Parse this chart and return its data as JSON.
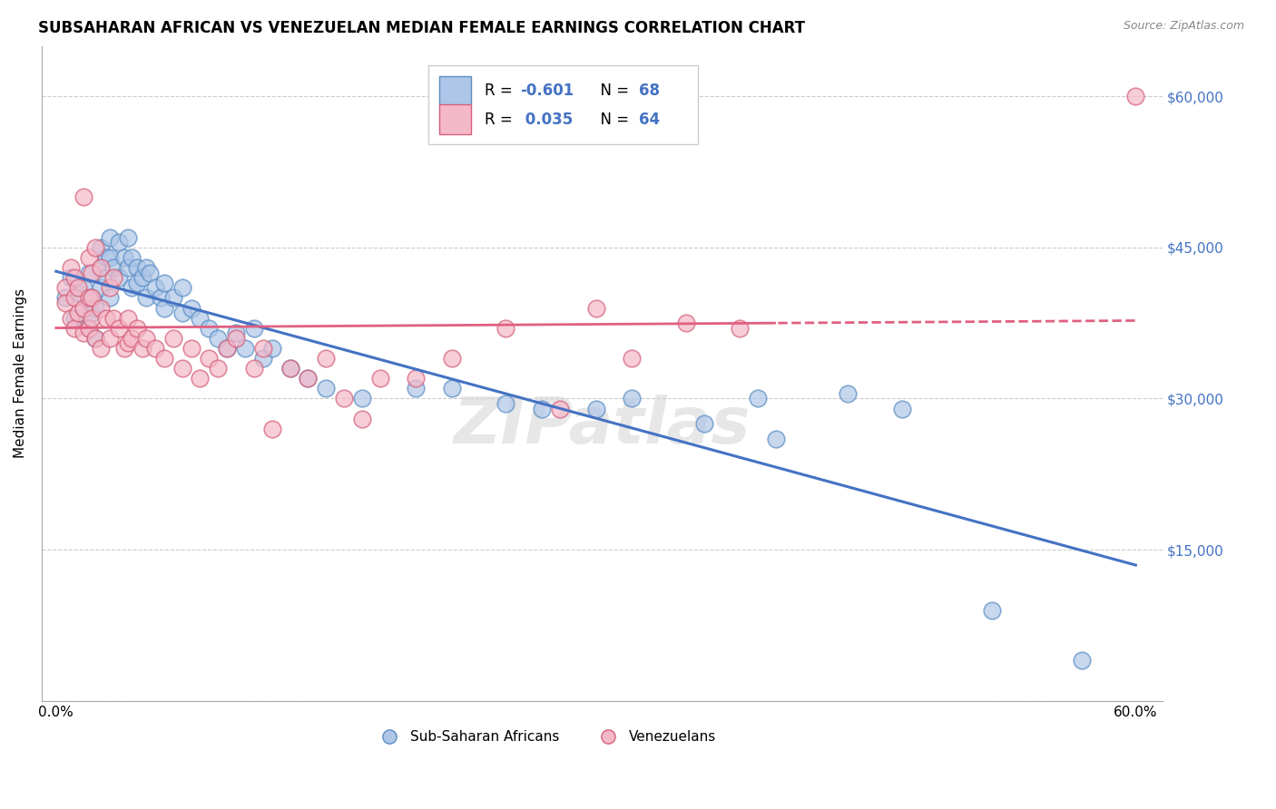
{
  "title": "SUBSAHARAN AFRICAN VS VENEZUELAN MEDIAN FEMALE EARNINGS CORRELATION CHART",
  "source": "Source: ZipAtlas.com",
  "ylabel": "Median Female Earnings",
  "y_ticks": [
    0,
    15000,
    30000,
    45000,
    60000
  ],
  "y_tick_labels": [
    "",
    "$15,000",
    "$30,000",
    "$45,000",
    "$60,000"
  ],
  "x_range": [
    0.0,
    0.6
  ],
  "y_range": [
    0,
    65000
  ],
  "legend_labels_bottom": [
    "Sub-Saharan Africans",
    "Venezuelans"
  ],
  "blue_fill": "#aec6e8",
  "blue_edge": "#5b8ec4",
  "pink_fill": "#f5b8c8",
  "pink_edge": "#d4607a",
  "blue_line": "#4472c4",
  "pink_line": "#e06080",
  "watermark": "ZIPatlas",
  "blue_points": [
    [
      0.005,
      40000
    ],
    [
      0.008,
      42000
    ],
    [
      0.01,
      38000
    ],
    [
      0.012,
      40500
    ],
    [
      0.015,
      39000
    ],
    [
      0.015,
      41000
    ],
    [
      0.018,
      37000
    ],
    [
      0.018,
      42500
    ],
    [
      0.02,
      38500
    ],
    [
      0.02,
      40000
    ],
    [
      0.022,
      36000
    ],
    [
      0.022,
      39000
    ],
    [
      0.025,
      41000
    ],
    [
      0.025,
      43000
    ],
    [
      0.025,
      45000
    ],
    [
      0.028,
      44000
    ],
    [
      0.028,
      42000
    ],
    [
      0.03,
      46000
    ],
    [
      0.03,
      44000
    ],
    [
      0.03,
      40000
    ],
    [
      0.032,
      43000
    ],
    [
      0.035,
      45500
    ],
    [
      0.035,
      42000
    ],
    [
      0.038,
      44000
    ],
    [
      0.04,
      46000
    ],
    [
      0.04,
      43000
    ],
    [
      0.042,
      41000
    ],
    [
      0.042,
      44000
    ],
    [
      0.045,
      43000
    ],
    [
      0.045,
      41500
    ],
    [
      0.048,
      42000
    ],
    [
      0.05,
      43000
    ],
    [
      0.05,
      40000
    ],
    [
      0.052,
      42500
    ],
    [
      0.055,
      41000
    ],
    [
      0.058,
      40000
    ],
    [
      0.06,
      39000
    ],
    [
      0.06,
      41500
    ],
    [
      0.065,
      40000
    ],
    [
      0.07,
      38500
    ],
    [
      0.07,
      41000
    ],
    [
      0.075,
      39000
    ],
    [
      0.08,
      38000
    ],
    [
      0.085,
      37000
    ],
    [
      0.09,
      36000
    ],
    [
      0.095,
      35000
    ],
    [
      0.1,
      36500
    ],
    [
      0.105,
      35000
    ],
    [
      0.11,
      37000
    ],
    [
      0.115,
      34000
    ],
    [
      0.12,
      35000
    ],
    [
      0.13,
      33000
    ],
    [
      0.14,
      32000
    ],
    [
      0.15,
      31000
    ],
    [
      0.17,
      30000
    ],
    [
      0.2,
      31000
    ],
    [
      0.22,
      31000
    ],
    [
      0.25,
      29500
    ],
    [
      0.27,
      29000
    ],
    [
      0.3,
      29000
    ],
    [
      0.32,
      30000
    ],
    [
      0.36,
      27500
    ],
    [
      0.39,
      30000
    ],
    [
      0.4,
      26000
    ],
    [
      0.44,
      30500
    ],
    [
      0.47,
      29000
    ],
    [
      0.52,
      9000
    ],
    [
      0.57,
      4000
    ]
  ],
  "pink_points": [
    [
      0.005,
      41000
    ],
    [
      0.005,
      39500
    ],
    [
      0.008,
      43000
    ],
    [
      0.008,
      38000
    ],
    [
      0.01,
      40000
    ],
    [
      0.01,
      37000
    ],
    [
      0.01,
      42000
    ],
    [
      0.012,
      38500
    ],
    [
      0.012,
      41000
    ],
    [
      0.015,
      39000
    ],
    [
      0.015,
      36500
    ],
    [
      0.015,
      50000
    ],
    [
      0.018,
      44000
    ],
    [
      0.018,
      40000
    ],
    [
      0.018,
      37000
    ],
    [
      0.02,
      42500
    ],
    [
      0.02,
      40000
    ],
    [
      0.02,
      38000
    ],
    [
      0.022,
      45000
    ],
    [
      0.022,
      36000
    ],
    [
      0.025,
      43000
    ],
    [
      0.025,
      39000
    ],
    [
      0.025,
      35000
    ],
    [
      0.028,
      38000
    ],
    [
      0.03,
      41000
    ],
    [
      0.03,
      36000
    ],
    [
      0.032,
      42000
    ],
    [
      0.032,
      38000
    ],
    [
      0.035,
      37000
    ],
    [
      0.038,
      35000
    ],
    [
      0.04,
      38000
    ],
    [
      0.04,
      35500
    ],
    [
      0.042,
      36000
    ],
    [
      0.045,
      37000
    ],
    [
      0.048,
      35000
    ],
    [
      0.05,
      36000
    ],
    [
      0.055,
      35000
    ],
    [
      0.06,
      34000
    ],
    [
      0.065,
      36000
    ],
    [
      0.07,
      33000
    ],
    [
      0.075,
      35000
    ],
    [
      0.08,
      32000
    ],
    [
      0.085,
      34000
    ],
    [
      0.09,
      33000
    ],
    [
      0.095,
      35000
    ],
    [
      0.1,
      36000
    ],
    [
      0.11,
      33000
    ],
    [
      0.115,
      35000
    ],
    [
      0.12,
      27000
    ],
    [
      0.13,
      33000
    ],
    [
      0.14,
      32000
    ],
    [
      0.15,
      34000
    ],
    [
      0.16,
      30000
    ],
    [
      0.17,
      28000
    ],
    [
      0.18,
      32000
    ],
    [
      0.2,
      32000
    ],
    [
      0.22,
      34000
    ],
    [
      0.25,
      37000
    ],
    [
      0.28,
      29000
    ],
    [
      0.3,
      39000
    ],
    [
      0.32,
      34000
    ],
    [
      0.35,
      37500
    ],
    [
      0.38,
      37000
    ],
    [
      0.6,
      60000
    ]
  ]
}
